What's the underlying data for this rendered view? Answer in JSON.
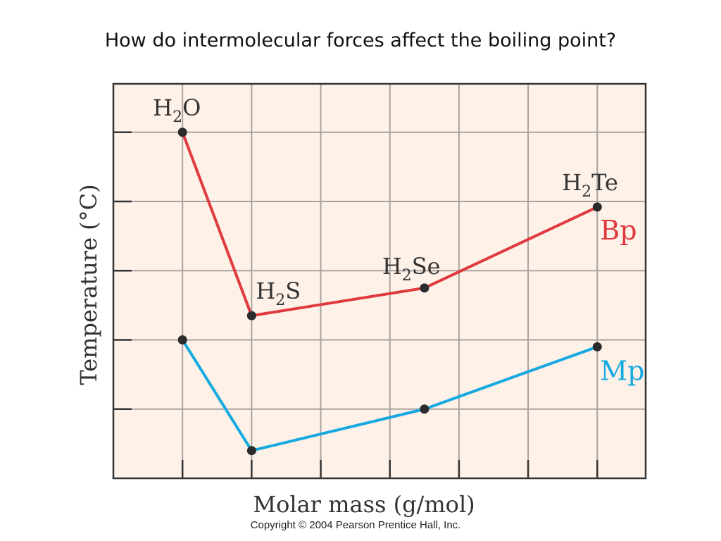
{
  "title": "How do intermolecular forces affect the boiling point?",
  "copyright": "Copyright © 2004 Pearson Prentice Hall, Inc.",
  "colors": {
    "plot_background": "#fdf1e8",
    "grid": "#a9a3a0",
    "frame": "#333333",
    "bp": "#e03a3e",
    "mp": "#17a9e1",
    "point": "#2b2b2b"
  },
  "chart_data": {
    "type": "line",
    "xlabel": "Molar mass (g/mol)",
    "ylabel": "Temperature (°C)",
    "categories": [
      "H2O",
      "H2S",
      "H2Se",
      "H2Te"
    ],
    "point_labels": [
      {
        "main": "H",
        "sub": "2",
        "tail": "O"
      },
      {
        "main": "H",
        "sub": "2",
        "tail": "S"
      },
      {
        "main": "H",
        "sub": "2",
        "tail": "Se"
      },
      {
        "main": "H",
        "sub": "2",
        "tail": "Te"
      }
    ],
    "x": [
      1,
      2,
      4.5,
      7
    ],
    "xlim": [
      0,
      7.7
    ],
    "ylim": [
      0,
      5.7
    ],
    "grid": true,
    "series": [
      {
        "name": "Bp",
        "values": [
          5.0,
          2.35,
          2.75,
          3.92
        ]
      },
      {
        "name": "Mp",
        "values": [
          2.0,
          0.4,
          1.0,
          1.9
        ]
      }
    ]
  }
}
